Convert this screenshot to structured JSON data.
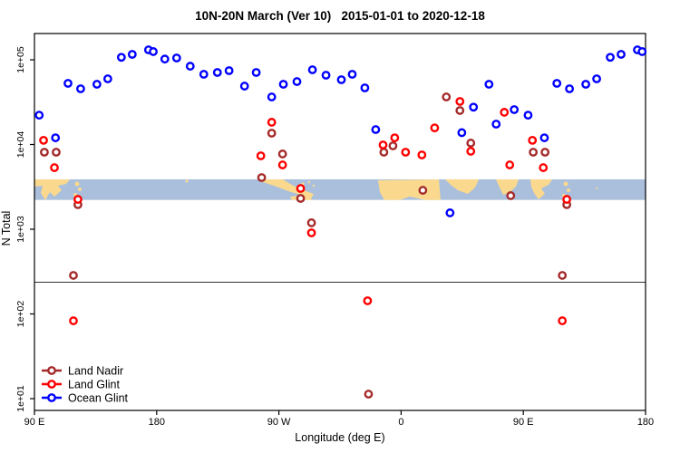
{
  "chart_data": {
    "type": "scatter",
    "title": "10N-20N March (Ver 10)   2015-01-01 to 2020-12-18",
    "xlabel": "Longitude (deg E)",
    "ylabel": "N Total",
    "x_axis": {
      "tick_labels": [
        "90 E",
        "180",
        "90 W",
        "0",
        "90 E",
        "180"
      ],
      "tick_positions_deg": [
        0,
        90,
        180,
        270,
        360,
        450
      ],
      "span_deg": 450,
      "note": "axis starts at 90E, wraps 180/-180 through 0 back to 180; points with lon>=90E plot twice"
    },
    "y_axis": {
      "scale": "log10",
      "tick_labels": [
        "1e+01",
        "1e+02",
        "1e+03",
        "1e+04",
        "1e+05"
      ],
      "tick_values": [
        10,
        100,
        1000,
        10000,
        100000
      ],
      "ylim_log10": [
        0.86,
        5.31
      ]
    },
    "grid": false,
    "hline_value": 237,
    "map_band": {
      "value_range": [
        2210,
        3890
      ],
      "ocean_color": "#A9BFDC",
      "land_color": "#FAD98E"
    },
    "legend": {
      "position": "bottom-left"
    },
    "series": [
      {
        "name": "Land Nadir",
        "color": "#A52A2A",
        "points": [
          [
            97.3,
            8110
          ],
          [
            106,
            8110
          ],
          [
            122,
            1950
          ],
          [
            118.7,
            285
          ],
          [
            -102.7,
            4070
          ],
          [
            -95.3,
            13600
          ],
          [
            -87.3,
            7730
          ],
          [
            -74,
            2310
          ],
          [
            -66,
            1190
          ],
          [
            -24,
            11.3
          ],
          [
            -12.7,
            8110
          ],
          [
            -6,
            9640
          ],
          [
            16,
            2880
          ],
          [
            33.3,
            36400
          ],
          [
            43.3,
            25200
          ],
          [
            51.3,
            10400
          ],
          [
            80.7,
            2490
          ]
        ]
      },
      {
        "name": "Land Glint",
        "color": "#FF0000",
        "points": [
          [
            96.7,
            11200
          ],
          [
            104.7,
            5330
          ],
          [
            122,
            2250
          ],
          [
            118.7,
            83
          ],
          [
            -103.3,
            7350
          ],
          [
            -95.3,
            18300
          ],
          [
            -87.3,
            5740
          ],
          [
            -74,
            3030
          ],
          [
            -66,
            906
          ],
          [
            -24.7,
            143
          ],
          [
            -13.3,
            9880
          ],
          [
            -4.7,
            12000
          ],
          [
            3.3,
            8110
          ],
          [
            15.3,
            7530
          ],
          [
            24.7,
            15700
          ],
          [
            43.3,
            32200
          ],
          [
            51.3,
            8320
          ],
          [
            76,
            24000
          ],
          [
            80,
            5740
          ]
        ]
      },
      {
        "name": "Ocean Glint",
        "color": "#0000FF",
        "points": [
          [
            93.5,
            22200
          ],
          [
            105.5,
            12000
          ],
          [
            114.7,
            52700
          ],
          [
            124,
            45500
          ],
          [
            136,
            51400
          ],
          [
            144,
            59600
          ],
          [
            154,
            107000
          ],
          [
            162,
            116000
          ],
          [
            174,
            131000
          ],
          [
            177.5,
            125000
          ],
          [
            -174,
            102000
          ],
          [
            -165.3,
            105000
          ],
          [
            -155.3,
            84000
          ],
          [
            -145.3,
            67400
          ],
          [
            -135.3,
            70800
          ],
          [
            -126.7,
            74400
          ],
          [
            -115.3,
            48900
          ],
          [
            -106.7,
            70800
          ],
          [
            -95.3,
            36400
          ],
          [
            -86.7,
            51400
          ],
          [
            -76.7,
            55300
          ],
          [
            -65.3,
            76200
          ],
          [
            -55.3,
            65800
          ],
          [
            -44,
            58200
          ],
          [
            -36,
            67400
          ],
          [
            -26.7,
            46600
          ],
          [
            -18.7,
            15000
          ],
          [
            36,
            1560
          ],
          [
            44.7,
            13800
          ],
          [
            53.3,
            27600
          ],
          [
            64.7,
            51400
          ],
          [
            70,
            17400
          ],
          [
            83.3,
            25800
          ]
        ]
      }
    ]
  },
  "colors": {
    "land_nadir": "#A52A2A",
    "land_glint": "#FF0000",
    "ocean_glint": "#0000FF",
    "map_ocean": "#A9BFDC",
    "map_land": "#FAD98E",
    "axis": "#000000"
  }
}
